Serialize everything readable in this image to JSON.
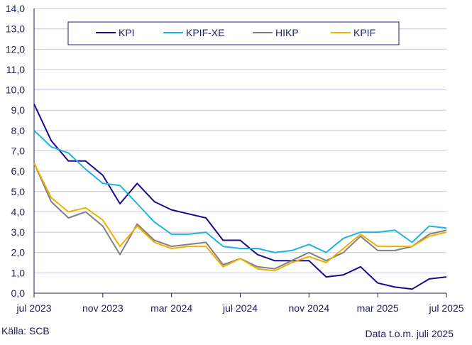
{
  "chart_data": {
    "type": "line",
    "title": "",
    "xlabel": "",
    "ylabel": "",
    "ylim": [
      0,
      14
    ],
    "yticks": [
      "0,0",
      "1,0",
      "2,0",
      "3,0",
      "4,0",
      "5,0",
      "6,0",
      "7,0",
      "8,0",
      "9,0",
      "10,0",
      "11,0",
      "12,0",
      "13,0",
      "14,0"
    ],
    "x": [
      "2023-07",
      "2023-08",
      "2023-09",
      "2023-10",
      "2023-11",
      "2023-12",
      "2024-01",
      "2024-02",
      "2024-03",
      "2024-04",
      "2024-05",
      "2024-06",
      "2024-07",
      "2024-08",
      "2024-09",
      "2024-10",
      "2024-11",
      "2024-12",
      "2025-01",
      "2025-02",
      "2025-03",
      "2025-04",
      "2025-05",
      "2025-06",
      "2025-07"
    ],
    "xtick_labels": [
      "jul 2023",
      "nov 2023",
      "mar 2024",
      "jul 2024",
      "nov 2024",
      "mar 2025",
      "jul 2025"
    ],
    "grid": true,
    "legend_position": "top",
    "series": [
      {
        "name": "KPI",
        "color": "#1a0a8c",
        "values": [
          9.3,
          7.5,
          6.5,
          6.5,
          5.8,
          4.4,
          5.4,
          4.5,
          4.1,
          3.9,
          3.7,
          2.6,
          2.6,
          1.9,
          1.6,
          1.6,
          1.6,
          0.8,
          0.9,
          1.3,
          0.5,
          0.3,
          0.2,
          0.7,
          0.8
        ]
      },
      {
        "name": "KPIF-XE",
        "color": "#1fb3e0",
        "values": [
          8.0,
          7.2,
          6.9,
          6.1,
          5.4,
          5.3,
          4.4,
          3.5,
          2.9,
          2.9,
          3.0,
          2.3,
          2.2,
          2.2,
          2.0,
          2.1,
          2.4,
          2.0,
          2.7,
          3.0,
          3.0,
          3.1,
          2.5,
          3.3,
          3.2
        ]
      },
      {
        "name": "HIKP",
        "color": "#808080",
        "values": [
          6.4,
          4.5,
          3.7,
          4.0,
          3.3,
          1.9,
          3.4,
          2.6,
          2.3,
          2.4,
          2.5,
          1.4,
          1.7,
          1.3,
          1.2,
          1.6,
          2.0,
          1.6,
          2.0,
          2.8,
          2.1,
          2.1,
          2.3,
          2.9,
          3.1
        ]
      },
      {
        "name": "KPIF",
        "color": "#f0b000",
        "values": [
          6.4,
          4.7,
          4.0,
          4.2,
          3.6,
          2.3,
          3.3,
          2.5,
          2.2,
          2.3,
          2.3,
          1.3,
          1.7,
          1.2,
          1.1,
          1.5,
          1.8,
          1.5,
          2.2,
          2.9,
          2.3,
          2.3,
          2.3,
          2.8,
          3.0
        ]
      }
    ]
  },
  "footer": {
    "source": "Källa: SCB",
    "note": "Data t.o.m. juli 2025"
  }
}
